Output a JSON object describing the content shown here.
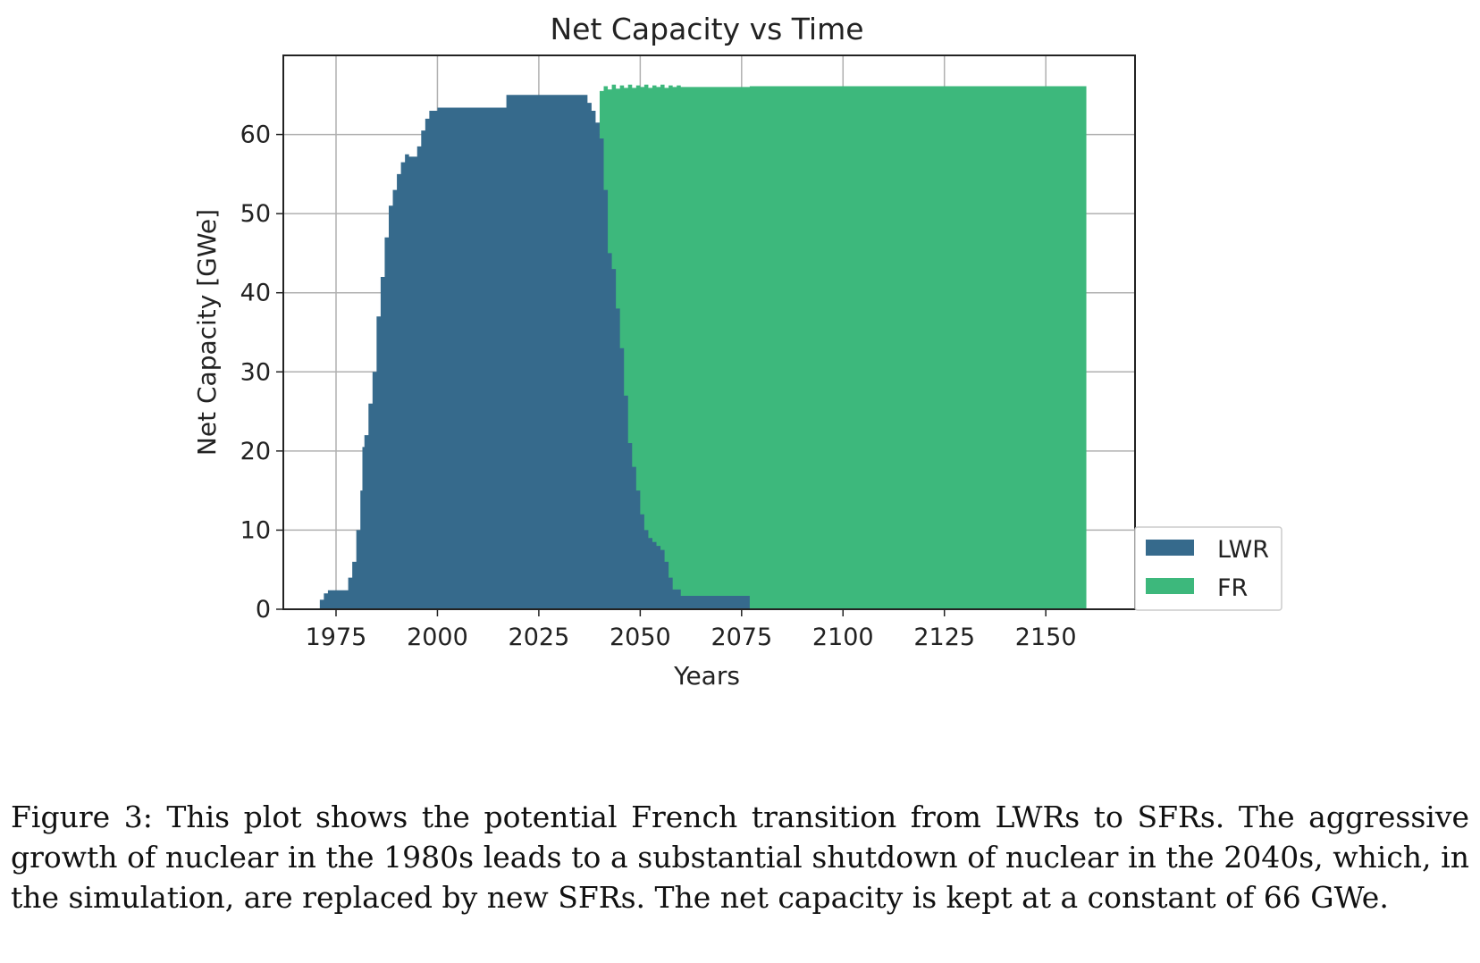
{
  "chart_data": {
    "type": "area",
    "title": "Net Capacity vs Time",
    "xlabel": "Years",
    "ylabel": "Net Capacity [GWe]",
    "xlim": [
      1962,
      2172
    ],
    "ylim": [
      0,
      70
    ],
    "xticks": [
      1975,
      2000,
      2025,
      2050,
      2075,
      2100,
      2125,
      2150
    ],
    "yticks": [
      0,
      10,
      20,
      30,
      40,
      50,
      60
    ],
    "grid": true,
    "stacked": true,
    "step": true,
    "legend_position": "lower-right-outside",
    "series": [
      {
        "name": "LWR",
        "color": "#366A8C",
        "points": [
          [
            1971,
            1.2
          ],
          [
            1972,
            2.0
          ],
          [
            1973,
            2.4
          ],
          [
            1977,
            2.4
          ],
          [
            1978,
            4.0
          ],
          [
            1979,
            6.0
          ],
          [
            1980,
            10.0
          ],
          [
            1981,
            15.0
          ],
          [
            1981.5,
            20.5
          ],
          [
            1982,
            22.0
          ],
          [
            1983,
            26.0
          ],
          [
            1984,
            30.0
          ],
          [
            1985,
            37.0
          ],
          [
            1986,
            42.0
          ],
          [
            1987,
            47.0
          ],
          [
            1988,
            51.0
          ],
          [
            1989,
            53.0
          ],
          [
            1990,
            55.0
          ],
          [
            1991,
            56.5
          ],
          [
            1992,
            57.5
          ],
          [
            1993,
            57.2
          ],
          [
            1995,
            58.5
          ],
          [
            1996,
            60.5
          ],
          [
            1997,
            62.0
          ],
          [
            1998,
            63.0
          ],
          [
            2000,
            63.4
          ],
          [
            2017,
            65.0
          ],
          [
            2037,
            64.0
          ],
          [
            2038,
            63.0
          ],
          [
            2039,
            61.5
          ],
          [
            2040,
            59.5
          ],
          [
            2041,
            53.0
          ],
          [
            2042,
            45.0
          ],
          [
            2043,
            43.0
          ],
          [
            2044,
            38.0
          ],
          [
            2045,
            33.0
          ],
          [
            2046,
            27.0
          ],
          [
            2047,
            21.0
          ],
          [
            2048,
            18.0
          ],
          [
            2049,
            15.0
          ],
          [
            2050,
            12.0
          ],
          [
            2051,
            10.0
          ],
          [
            2052,
            9.0
          ],
          [
            2053,
            8.5
          ],
          [
            2054,
            8.0
          ],
          [
            2055,
            7.5
          ],
          [
            2056,
            6.0
          ],
          [
            2057,
            4.0
          ],
          [
            2058,
            2.5
          ],
          [
            2060,
            1.7
          ],
          [
            2077,
            0
          ]
        ]
      },
      {
        "name": "FR",
        "color": "#3DB87C",
        "total_points": [
          [
            2040,
            65.5
          ],
          [
            2041,
            66.1
          ],
          [
            2042,
            65.7
          ],
          [
            2043,
            66.3
          ],
          [
            2044,
            65.8
          ],
          [
            2045,
            66.2
          ],
          [
            2046,
            65.9
          ],
          [
            2047,
            66.3
          ],
          [
            2048,
            65.9
          ],
          [
            2049,
            66.2
          ],
          [
            2050,
            66.0
          ],
          [
            2051,
            66.3
          ],
          [
            2052,
            65.9
          ],
          [
            2053,
            66.2
          ],
          [
            2054,
            66.0
          ],
          [
            2055,
            66.3
          ],
          [
            2056,
            65.9
          ],
          [
            2057,
            66.2
          ],
          [
            2058,
            66.0
          ],
          [
            2059,
            66.2
          ],
          [
            2060,
            66.0
          ],
          [
            2077,
            66.1
          ],
          [
            2160,
            0
          ]
        ]
      }
    ]
  },
  "caption": "Figure 3: This plot shows the potential French transition from LWRs to SFRs. The aggressive growth of nuclear in the 1980s leads to a substantial shutdown of nuclear in the 2040s, which, in the simulation, are replaced by new SFRs. The net capacity is kept at a constant of 66 GWe."
}
